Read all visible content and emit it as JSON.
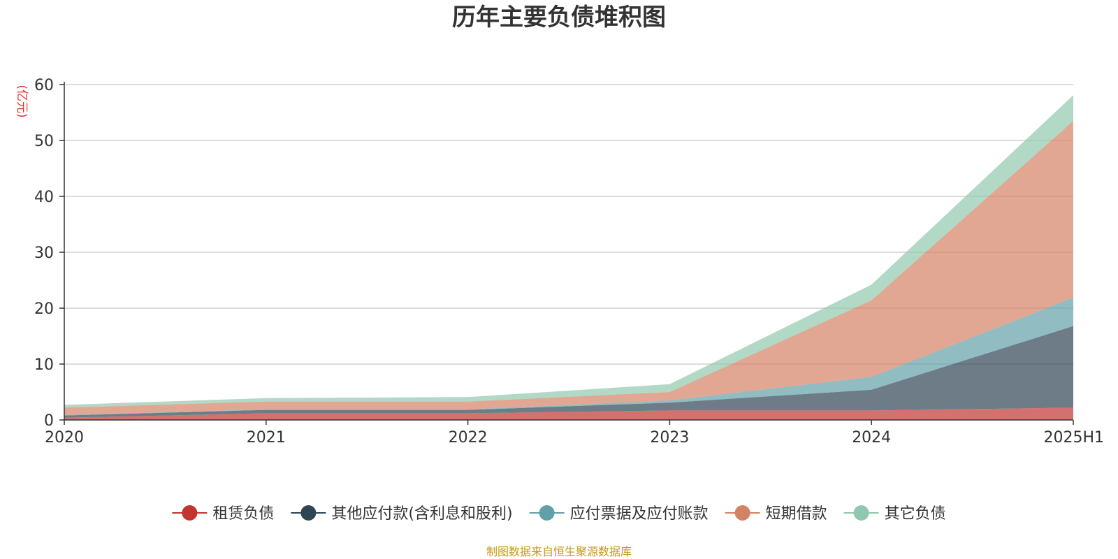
{
  "chart_data": {
    "type": "area",
    "stacked": true,
    "title": "历年主要负债堆积图",
    "unit_label": "(亿元)",
    "x": [
      "2020",
      "2021",
      "2022",
      "2023",
      "2024",
      "2025H1"
    ],
    "ylim": [
      0,
      60
    ],
    "yticks": [
      0,
      10,
      20,
      30,
      40,
      50,
      60
    ],
    "grid": true,
    "legend_position": "bottom",
    "series": [
      {
        "name": "租赁负债",
        "color": "#c23531",
        "values": [
          0.4,
          1.2,
          1.2,
          1.7,
          1.7,
          2.2
        ]
      },
      {
        "name": "其他应付款(含利息和股利)",
        "color": "#2f4554",
        "values": [
          0.4,
          0.6,
          0.6,
          1.4,
          3.7,
          14.6
        ]
      },
      {
        "name": "应付票据及应付账款",
        "color": "#61a0a8",
        "values": [
          0.1,
          0.1,
          0.1,
          0.4,
          2.3,
          5.1
        ]
      },
      {
        "name": "短期借款",
        "color": "#d48265",
        "values": [
          1.3,
          1.4,
          1.4,
          1.5,
          13.7,
          31.6
        ]
      },
      {
        "name": "其它负债",
        "color": "#91c7ae",
        "values": [
          0.5,
          0.6,
          0.8,
          1.4,
          2.8,
          4.6
        ]
      }
    ]
  },
  "source_note": "制图数据来自恒生聚源数据库"
}
